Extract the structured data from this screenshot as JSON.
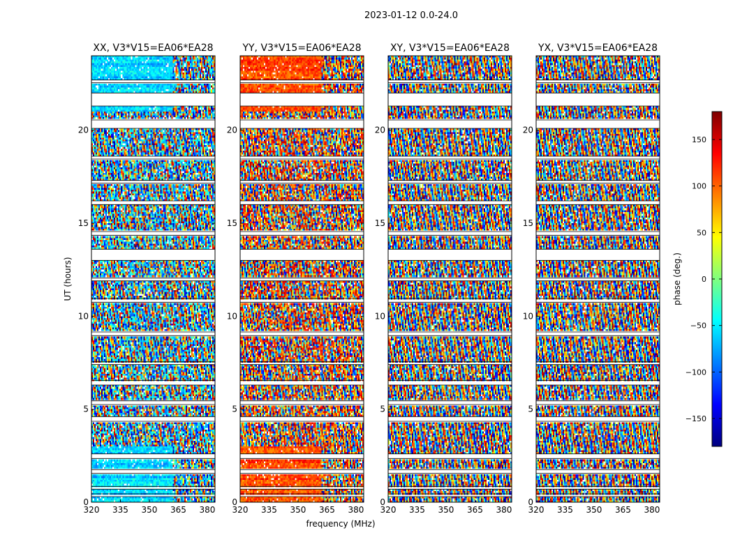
{
  "chart_data": {
    "type": "heatmap",
    "suptitle": "2023-01-12 0.0-24.0",
    "xlabel": "frequency (MHz)",
    "ylabel": "UT (hours)",
    "xlim": [
      320,
      384
    ],
    "ylim": [
      0,
      24
    ],
    "xticks": [
      320,
      335,
      350,
      365,
      380
    ],
    "yticks": [
      0,
      5,
      10,
      15,
      20
    ],
    "colorbar": {
      "label": "phase (deg.)",
      "range": [
        -180,
        180
      ],
      "ticks": [
        -150,
        -100,
        -50,
        0,
        50,
        100,
        150
      ],
      "colormap": "jet",
      "colormap_stops": [
        "#00007f",
        "#0000ff",
        "#007fff",
        "#00ffff",
        "#7fff7f",
        "#ffff00",
        "#ff7f00",
        "#ff0000",
        "#7f0000"
      ]
    },
    "panels": [
      {
        "title": "XX, V3*V15=EA06*EA28",
        "id": "xx",
        "base_phase": -60,
        "coherent_until_mhz": 362
      },
      {
        "title": "YY, V3*V15=EA06*EA28",
        "id": "yy",
        "base_phase": 110,
        "coherent_until_mhz": 362
      },
      {
        "title": "XY, V3*V15=EA06*EA28",
        "id": "xy",
        "base_phase": null,
        "coherent_until_mhz": 320
      },
      {
        "title": "YX, V3*V15=EA06*EA28",
        "id": "yx",
        "base_phase": null,
        "coherent_until_mhz": 320
      }
    ],
    "data_gaps_ut_hours": [
      [
        0.3,
        0.45
      ],
      [
        0.7,
        0.85
      ],
      [
        1.55,
        1.75
      ],
      [
        2.35,
        2.6
      ],
      [
        4.35,
        4.6
      ],
      [
        5.25,
        5.45
      ],
      [
        6.3,
        6.55
      ],
      [
        7.4,
        7.55
      ],
      [
        8.95,
        9.15
      ],
      [
        10.75,
        10.95
      ],
      [
        11.9,
        12.05
      ],
      [
        13.0,
        13.6
      ],
      [
        14.35,
        14.55
      ],
      [
        16.0,
        16.2
      ],
      [
        17.15,
        17.3
      ],
      [
        18.45,
        18.6
      ],
      [
        20.1,
        20.55
      ],
      [
        21.3,
        22.0
      ],
      [
        22.55,
        22.7
      ]
    ]
  }
}
